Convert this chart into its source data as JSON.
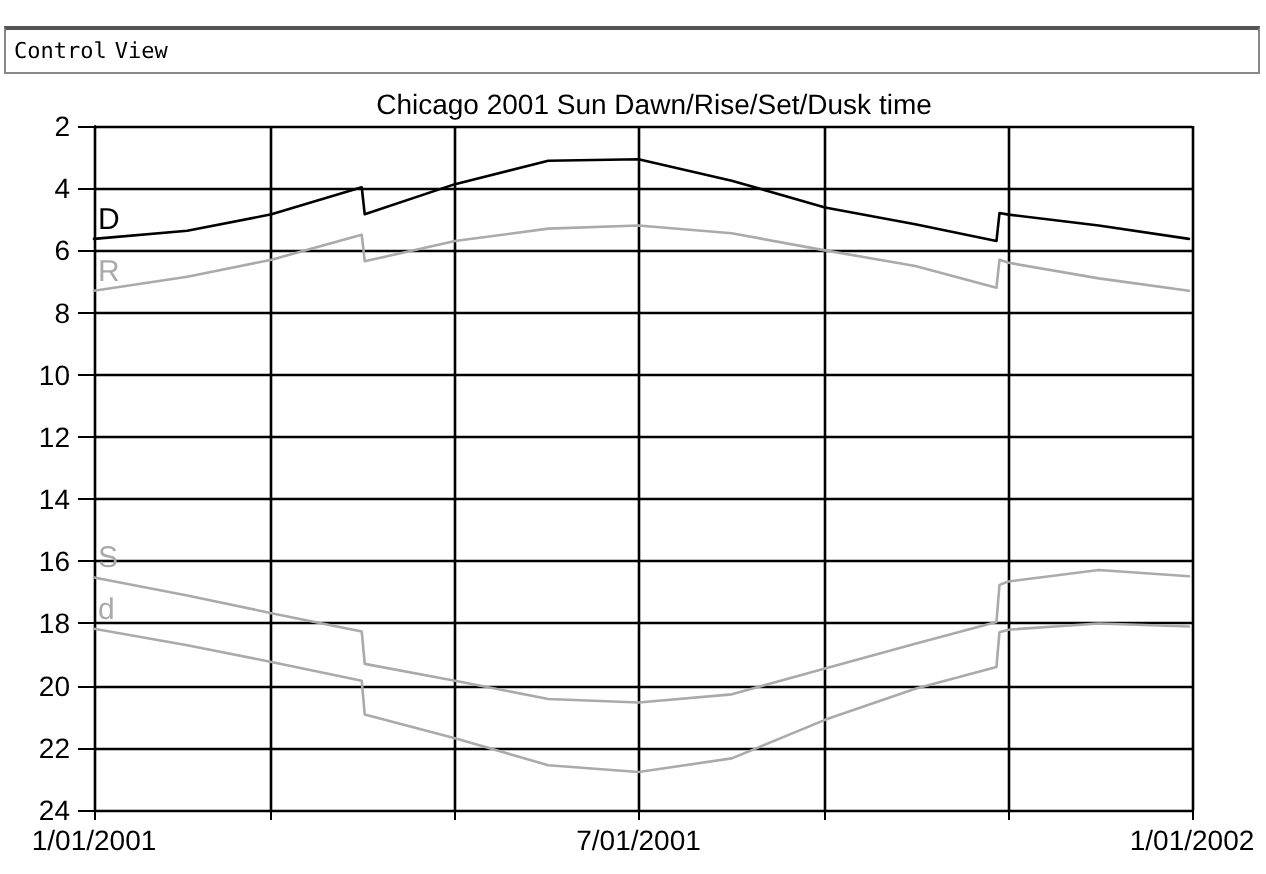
{
  "chart_data": {
    "type": "line",
    "title": "Chicago 2001 Sun Dawn/Rise/Set/Dusk time",
    "annotations": [
      "Control",
      "View"
    ],
    "x": [
      "2001-01-01",
      "2001-02-01",
      "2001-03-01",
      "2001-03-31",
      "2001-04-01",
      "2001-05-01",
      "2001-06-01",
      "2001-07-01",
      "2001-08-01",
      "2001-09-01",
      "2001-10-01",
      "2001-10-28",
      "2001-10-29",
      "2001-11-01",
      "2001-12-01",
      "2001-12-31"
    ],
    "series": [
      {
        "name": "D",
        "color": "#000000",
        "values": [
          5.63,
          5.37,
          4.84,
          3.97,
          4.84,
          3.87,
          3.12,
          3.07,
          3.76,
          4.62,
          5.16,
          5.7,
          4.8,
          4.85,
          5.2,
          5.63
        ]
      },
      {
        "name": "R",
        "color": "#aaaaaa",
        "values": [
          7.3,
          6.85,
          6.3,
          5.5,
          6.35,
          5.7,
          5.3,
          5.2,
          5.45,
          6.0,
          6.5,
          7.2,
          6.3,
          6.4,
          6.9,
          7.3
        ]
      },
      {
        "name": "S",
        "color": "#aaaaaa",
        "values": [
          16.52,
          17.1,
          17.67,
          18.26,
          19.3,
          19.84,
          20.43,
          20.54,
          20.28,
          19.45,
          18.65,
          17.95,
          16.76,
          16.65,
          16.28,
          16.48
        ]
      },
      {
        "name": "d",
        "color": "#aaaaaa",
        "values": [
          18.17,
          18.7,
          19.24,
          19.84,
          20.93,
          21.69,
          22.56,
          22.78,
          22.34,
          21.1,
          20.1,
          19.4,
          18.28,
          18.2,
          18.0,
          18.1
        ]
      }
    ],
    "xlim": [
      "2001-01-01",
      "2002-01-01"
    ],
    "xticks": [
      {
        "value": "2001-01-01",
        "label": "1/01/2001"
      },
      {
        "value": "2001-03-01",
        "label": null
      },
      {
        "value": "2001-05-01",
        "label": null
      },
      {
        "value": "2001-07-01",
        "label": "7/01/2001"
      },
      {
        "value": "2001-09-01",
        "label": null
      },
      {
        "value": "2001-11-01",
        "label": null
      },
      {
        "value": "2002-01-01",
        "label": "1/01/2002"
      }
    ],
    "ylim": [
      24,
      2
    ],
    "yticks": [
      2,
      4,
      6,
      8,
      10,
      12,
      14,
      16,
      18,
      20,
      22,
      24
    ],
    "grid": true,
    "marker": "none",
    "line_style": "solid"
  }
}
